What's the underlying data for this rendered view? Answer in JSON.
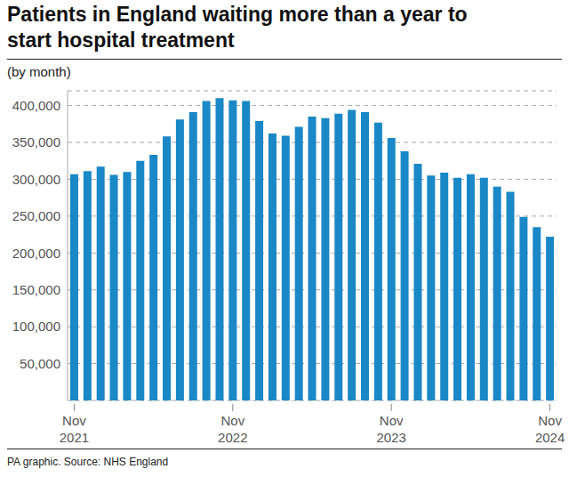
{
  "chart_data": {
    "type": "bar",
    "title": "Patients in England waiting more than a year to start hospital treatment",
    "subtitle": "(by month)",
    "source": "PA graphic. Source: NHS England",
    "categories": [
      "Nov 2021",
      null,
      null,
      null,
      null,
      null,
      null,
      null,
      null,
      null,
      null,
      null,
      "Nov 2022",
      null,
      null,
      null,
      null,
      null,
      null,
      null,
      null,
      null,
      null,
      null,
      "Nov 2023",
      null,
      null,
      null,
      null,
      null,
      null,
      null,
      null,
      null,
      null,
      null,
      "Nov 2024"
    ],
    "values": [
      307000,
      311000,
      317000,
      306000,
      310000,
      325000,
      333000,
      358000,
      381000,
      391000,
      406000,
      410000,
      407000,
      406000,
      379000,
      362000,
      359000,
      371000,
      385000,
      383000,
      389000,
      394000,
      391000,
      377000,
      356000,
      338000,
      321000,
      305000,
      309000,
      302000,
      307000,
      302000,
      290000,
      283000,
      249000,
      235000,
      222000
    ],
    "color": "#1a87c6",
    "ylim": [
      0,
      420000
    ],
    "yticks": [
      {
        "value": 50000,
        "label": "50,000"
      },
      {
        "value": 100000,
        "label": "100,000"
      },
      {
        "value": 150000,
        "label": "150,000"
      },
      {
        "value": 200000,
        "label": "200,000"
      },
      {
        "value": 250000,
        "label": "250,000"
      },
      {
        "value": 300000,
        "label": "300,000"
      },
      {
        "value": 350000,
        "label": "350,000"
      },
      {
        "value": 400000,
        "label": "400,000"
      }
    ],
    "grid": true
  }
}
